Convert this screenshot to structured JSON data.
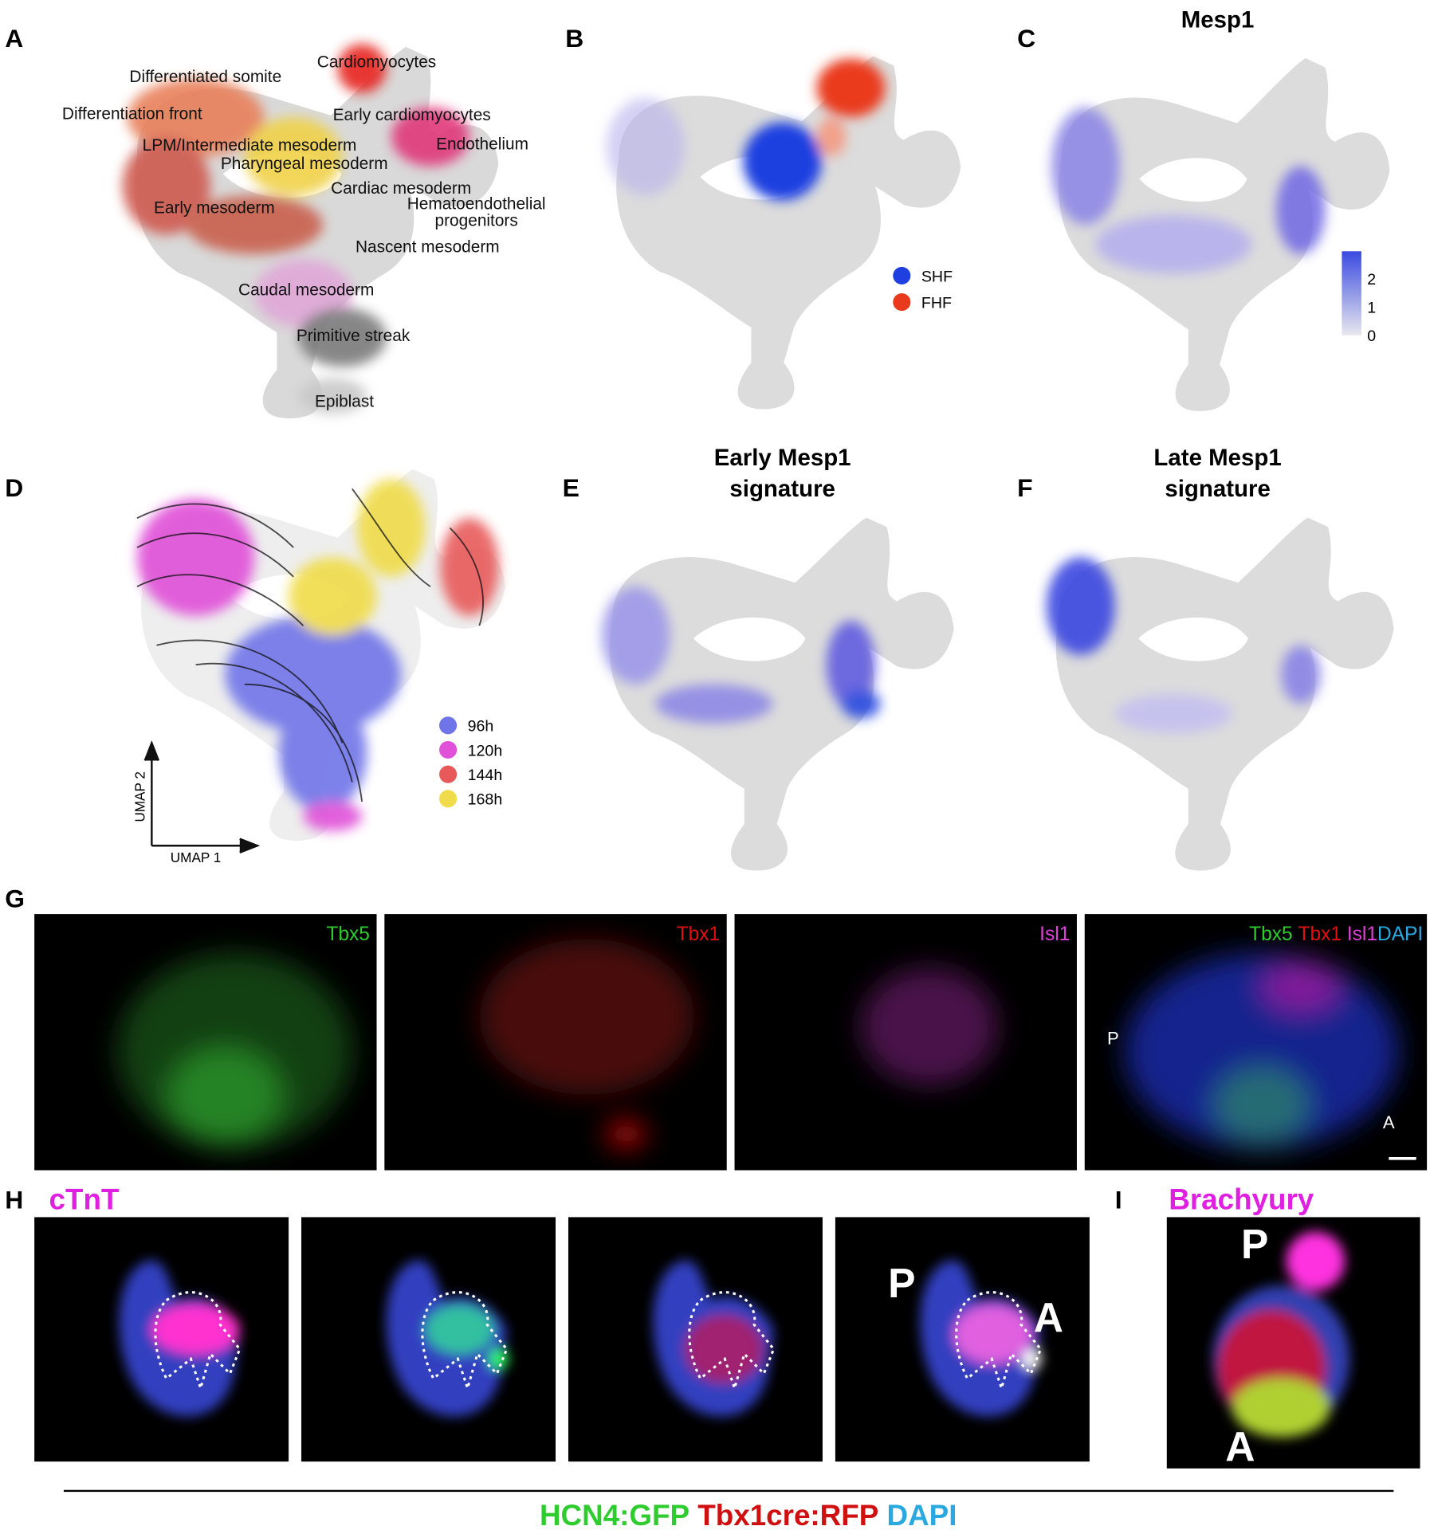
{
  "panel_letters": [
    "A",
    "B",
    "C",
    "D",
    "E",
    "F",
    "G",
    "H",
    "I"
  ],
  "panel_a": {
    "clusters": [
      "Cardiomyocytes",
      "Differentiated somite",
      "Differentiation front",
      "Early cardiomyocytes",
      "Endothelium",
      "LPM/Intermediate mesoderm",
      "Pharyngeal mesoderm",
      "Cardiac mesoderm",
      [
        "Hematoendothelial",
        "progenitors"
      ],
      "Early mesoderm",
      "Nascent mesoderm",
      "Caudal mesoderm",
      "Primitive streak",
      "Epiblast"
    ]
  },
  "panel_b": {
    "legend": [
      "SHF",
      "FHF"
    ]
  },
  "panel_c": {
    "title": "Mesp1",
    "colorbar_ticks": [
      0,
      1,
      2
    ]
  },
  "panel_d": {
    "legend": [
      "96h",
      "120h",
      "144h",
      "168h"
    ],
    "x_axis": "UMAP 1",
    "y_axis": "UMAP 2"
  },
  "panel_e": {
    "title": [
      "Early Mesp1",
      "signature"
    ]
  },
  "panel_f": {
    "title": [
      "Late Mesp1",
      "signature"
    ]
  },
  "panel_g": {
    "channels": [
      "Tbx5",
      "Tbx1",
      "Isl1"
    ],
    "merge_labels": [
      "Tbx5",
      "Tbx1",
      "Isl1",
      "DAPI"
    ],
    "posterior": "P",
    "anterior": "A"
  },
  "panel_h": {
    "stain": "cTnT",
    "posterior": "P",
    "anterior": "A"
  },
  "panel_i": {
    "stain": "Brachyury",
    "posterior": "P",
    "anterior": "A"
  },
  "footer": [
    "HCN4:GFP",
    "Tbx1cre:RFP",
    "DAPI"
  ]
}
